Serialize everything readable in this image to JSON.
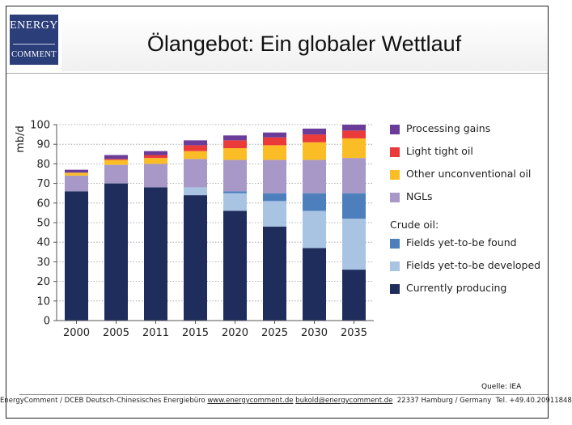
{
  "header": {
    "logo_line1": "ENERGY",
    "logo_line2": "COMMENT",
    "title": "Ölangebot: Ein globaler Wettlauf"
  },
  "legend": {
    "crude_heading": "Crude oil:"
  },
  "source": "Quelle: IEA",
  "footer": {
    "org": "EnergyComment / DCEB Deutsch-Chinesisches Energiebüro",
    "website": "www.energycomment.de",
    "email": "bukold@energycomment.de",
    "address": "22337 Hamburg / Germany",
    "phone": "Tel. +49.40.20911848"
  },
  "colors": {
    "currently_producing": "#1f2d5c",
    "yet_to_be_developed": "#a9c4e2",
    "yet_to_be_found": "#4d7fbd",
    "ngls": "#a898c8",
    "other_unconventional": "#fbbd26",
    "light_tight_oil": "#ea3a3a",
    "processing_gains": "#6b3d9a"
  },
  "chart_data": {
    "type": "bar",
    "stacked": true,
    "ylabel": "mb/d",
    "xlabel": "",
    "ylim": [
      0,
      100
    ],
    "yticks": [
      0,
      10,
      20,
      30,
      40,
      50,
      60,
      70,
      80,
      90,
      100
    ],
    "grid": "horizontal dotted",
    "legend_position": "right",
    "categories": [
      "2000",
      "2005",
      "2011",
      "2015",
      "2020",
      "2025",
      "2030",
      "2035"
    ],
    "series": [
      {
        "name": "Currently producing",
        "color_key": "currently_producing",
        "values": [
          66,
          70,
          68,
          64,
          56,
          48,
          37,
          26
        ]
      },
      {
        "name": "Fields yet-to-be developed",
        "color_key": "yet_to_be_developed",
        "values": [
          0,
          0,
          0,
          4,
          9,
          13,
          19,
          26
        ]
      },
      {
        "name": "Fields yet-to-be found",
        "color_key": "yet_to_be_found",
        "values": [
          0,
          0,
          0,
          0,
          1,
          4,
          9,
          13
        ]
      },
      {
        "name": "NGLs",
        "color_key": "ngls",
        "values": [
          8,
          9.5,
          12,
          14.5,
          16,
          17,
          17,
          18
        ]
      },
      {
        "name": "Other unconventional oil",
        "color_key": "other_unconventional",
        "values": [
          1.5,
          2.5,
          3,
          4,
          6,
          7.5,
          9,
          10
        ]
      },
      {
        "name": "Light tight oil",
        "color_key": "light_tight_oil",
        "values": [
          0,
          0.5,
          1.5,
          3,
          4,
          4,
          4,
          4
        ]
      },
      {
        "name": "Processing gains",
        "color_key": "processing_gains",
        "values": [
          1.5,
          2,
          2,
          2.5,
          2.5,
          2.5,
          3,
          3
        ]
      }
    ]
  }
}
